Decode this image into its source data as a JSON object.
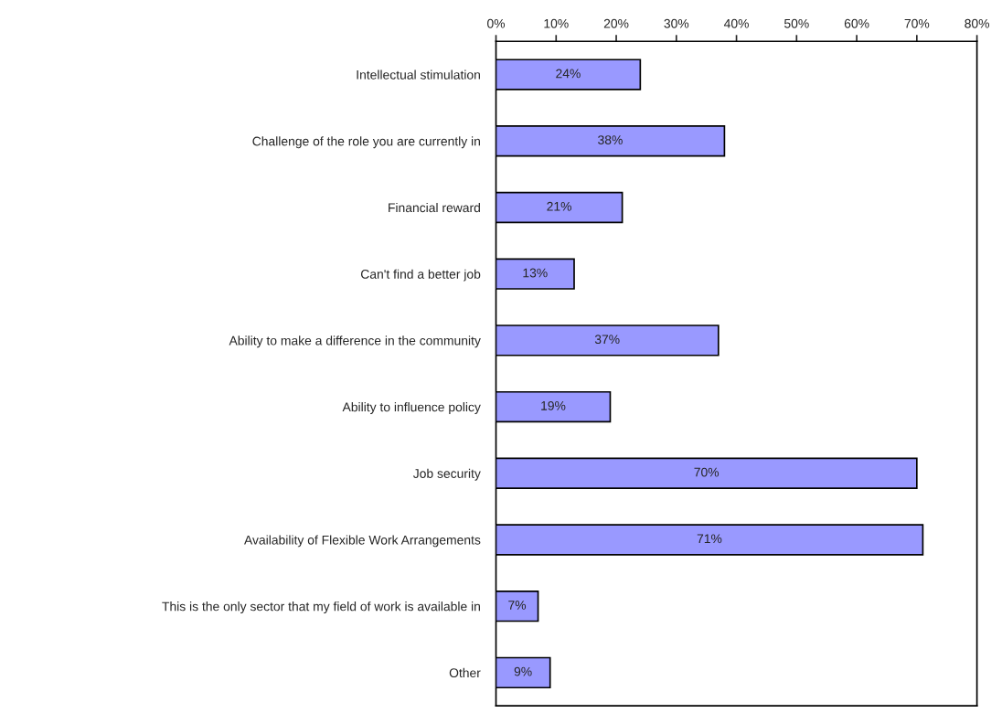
{
  "chart_data": {
    "type": "bar",
    "orientation": "horizontal",
    "categories": [
      "Intellectual stimulation",
      "Challenge of the role you are currently in",
      "Financial reward",
      "Can't find a better job",
      "Ability to make a difference in the community",
      "Ability to influence policy",
      "Job security",
      "Availability of Flexible Work Arrangements",
      "This is the only sector that my field of work is available in",
      "Other"
    ],
    "values": [
      24,
      38,
      21,
      13,
      37,
      19,
      70,
      71,
      7,
      9
    ],
    "color": "#9999ff",
    "value_labels": [
      "24%",
      "38%",
      "21%",
      "13%",
      "37%",
      "19%",
      "70%",
      "71%",
      "7%",
      "9%"
    ],
    "xlim": [
      0,
      80
    ],
    "xticks": [
      {
        "value": 0,
        "label": "0%"
      },
      {
        "value": 10,
        "label": "10%"
      },
      {
        "value": 20,
        "label": "20%"
      },
      {
        "value": 30,
        "label": "30%"
      },
      {
        "value": 40,
        "label": "40%"
      },
      {
        "value": 50,
        "label": "50%"
      },
      {
        "value": 60,
        "label": "60%"
      },
      {
        "value": 70,
        "label": "70%"
      },
      {
        "value": 80,
        "label": "80%"
      }
    ],
    "grid": false,
    "legend": false
  }
}
